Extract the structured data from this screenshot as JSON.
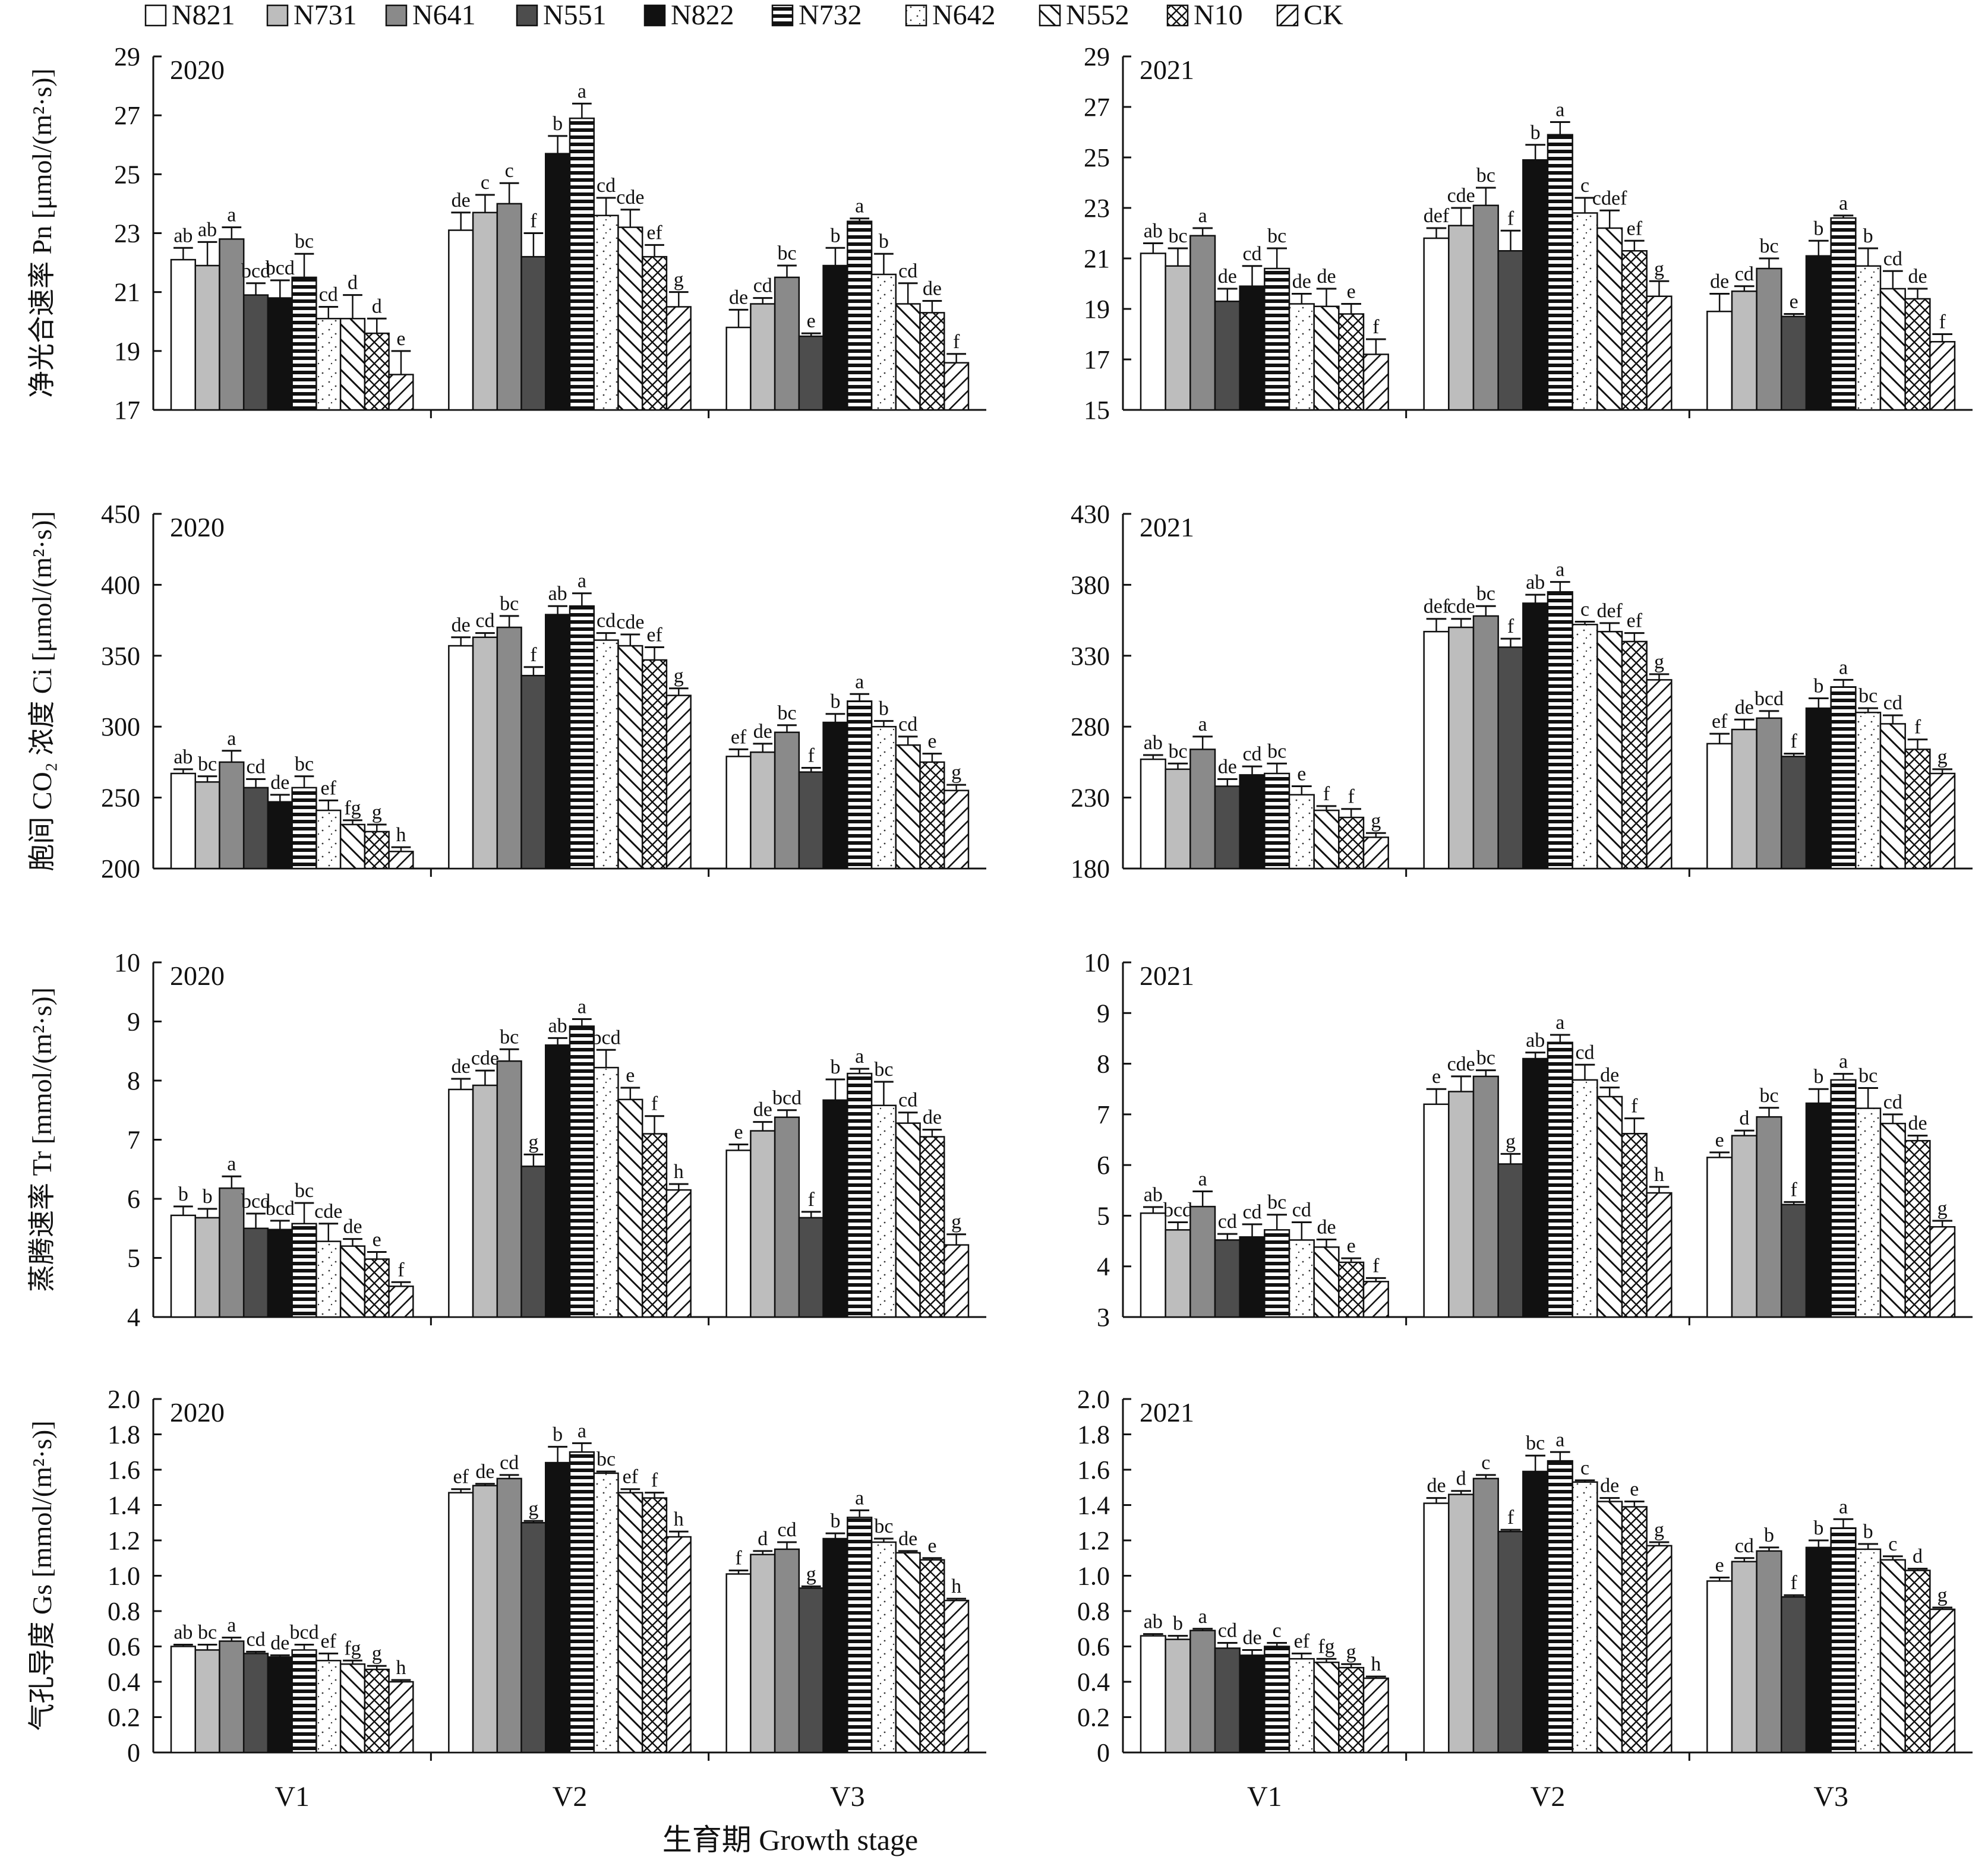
{
  "chart_data": {
    "type": "bar",
    "series_names": [
      "N821",
      "N731",
      "N641",
      "N551",
      "N822",
      "N732",
      "N642",
      "N552",
      "N10",
      "CK"
    ],
    "categories": [
      "V1",
      "V2",
      "V3"
    ],
    "xlabel": "生育期 Growth stage",
    "legend_position": "top",
    "grid": false,
    "panels": [
      {
        "year": "2020",
        "ylabel": "净光合速率 Pn [μmol/(m²·s)]",
        "ylim": [
          17,
          29
        ],
        "yticks": [
          "17",
          "19",
          "21",
          "23",
          "25",
          "27",
          "29"
        ],
        "values": [
          [
            22.1,
            21.9,
            22.8,
            20.9,
            20.8,
            21.5,
            20.1,
            20.1,
            19.6,
            18.2
          ],
          [
            23.1,
            23.7,
            24.0,
            22.2,
            25.7,
            26.9,
            23.6,
            23.2,
            22.2,
            20.5
          ],
          [
            19.8,
            20.6,
            21.5,
            19.5,
            21.9,
            23.4,
            21.6,
            20.6,
            20.3,
            18.6
          ]
        ],
        "errors": [
          [
            0.4,
            0.8,
            0.4,
            0.4,
            0.6,
            0.8,
            0.4,
            0.8,
            0.5,
            0.8
          ],
          [
            0.6,
            0.6,
            0.7,
            0.8,
            0.6,
            0.5,
            0.6,
            0.6,
            0.4,
            0.5
          ],
          [
            0.6,
            0.2,
            0.4,
            0.1,
            0.6,
            0.1,
            0.7,
            0.7,
            0.4,
            0.3
          ]
        ],
        "letters": [
          [
            "ab",
            "ab",
            "a",
            "bcd",
            "bcd",
            "bc",
            "cd",
            "d",
            "d",
            "e"
          ],
          [
            "de",
            "c",
            "c",
            "f",
            "b",
            "a",
            "cd",
            "cde",
            "ef",
            "g"
          ],
          [
            "de",
            "cd",
            "bc",
            "e",
            "b",
            "a",
            "b",
            "cd",
            "de",
            "f"
          ]
        ]
      },
      {
        "year": "2021",
        "ylabel": "",
        "ylim": [
          15,
          29
        ],
        "yticks": [
          "15",
          "17",
          "19",
          "21",
          "23",
          "25",
          "27",
          "29"
        ],
        "values": [
          [
            21.2,
            20.7,
            21.9,
            19.3,
            19.9,
            20.6,
            19.2,
            19.1,
            18.8,
            17.2
          ],
          [
            21.8,
            22.3,
            23.1,
            21.3,
            24.9,
            25.9,
            22.8,
            22.2,
            21.3,
            19.5
          ],
          [
            18.9,
            19.7,
            20.6,
            18.7,
            21.1,
            22.6,
            20.7,
            19.8,
            19.4,
            17.7
          ]
        ],
        "errors": [
          [
            0.4,
            0.7,
            0.3,
            0.5,
            0.8,
            0.8,
            0.4,
            0.7,
            0.4,
            0.6
          ],
          [
            0.4,
            0.7,
            0.7,
            0.8,
            0.6,
            0.5,
            0.6,
            0.7,
            0.4,
            0.6
          ],
          [
            0.7,
            0.2,
            0.4,
            0.1,
            0.6,
            0.1,
            0.7,
            0.7,
            0.4,
            0.3
          ]
        ],
        "letters": [
          [
            "ab",
            "bc",
            "a",
            "de",
            "cd",
            "bc",
            "de",
            "de",
            "e",
            "f"
          ],
          [
            "def",
            "cde",
            "bc",
            "f",
            "b",
            "a",
            "c",
            "cdef",
            "ef",
            "g"
          ],
          [
            "de",
            "cd",
            "bc",
            "e",
            "b",
            "a",
            "b",
            "cd",
            "de",
            "f"
          ]
        ]
      },
      {
        "year": "2020",
        "ylabel": "胞间 CO₂ 浓度 Ci [μmol/(m²·s)]",
        "ylim": [
          200,
          450
        ],
        "yticks": [
          "200",
          "250",
          "300",
          "350",
          "400",
          "450"
        ],
        "values": [
          [
            267,
            261,
            275,
            257,
            247,
            257,
            241,
            231,
            226,
            212
          ],
          [
            357,
            363,
            370,
            336,
            379,
            385,
            361,
            357,
            347,
            322
          ],
          [
            279,
            282,
            296,
            268,
            303,
            318,
            300,
            287,
            275,
            255
          ]
        ],
        "errors": [
          [
            3,
            4,
            8,
            6,
            5,
            8,
            7,
            3,
            5,
            3
          ],
          [
            6,
            3,
            8,
            6,
            6,
            9,
            5,
            8,
            9,
            5
          ],
          [
            5,
            6,
            5,
            3,
            6,
            5,
            4,
            6,
            6,
            4
          ]
        ],
        "letters": [
          [
            "ab",
            "bc",
            "a",
            "cd",
            "de",
            "bc",
            "ef",
            "fg",
            "g",
            "h"
          ],
          [
            "de",
            "cd",
            "bc",
            "f",
            "ab",
            "a",
            "cd",
            "cde",
            "ef",
            "g"
          ],
          [
            "ef",
            "de",
            "bc",
            "f",
            "b",
            "a",
            "b",
            "cd",
            "e",
            "g"
          ]
        ]
      },
      {
        "year": "2021",
        "ylabel": "",
        "ylim": [
          180,
          430
        ],
        "yticks": [
          "180",
          "230",
          "280",
          "330",
          "380",
          "430"
        ],
        "values": [
          [
            257,
            250,
            264,
            238,
            246,
            247,
            232,
            221,
            216,
            202
          ],
          [
            347,
            350,
            358,
            336,
            367,
            375,
            352,
            347,
            340,
            313
          ],
          [
            268,
            278,
            286,
            259,
            293,
            308,
            290,
            282,
            264,
            247
          ]
        ],
        "errors": [
          [
            3,
            4,
            9,
            5,
            6,
            7,
            6,
            3,
            6,
            3
          ],
          [
            9,
            6,
            7,
            6,
            6,
            7,
            2,
            6,
            6,
            4
          ],
          [
            7,
            7,
            5,
            2,
            7,
            5,
            3,
            6,
            7,
            3
          ]
        ],
        "letters": [
          [
            "ab",
            "bc",
            "a",
            "de",
            "cd",
            "bc",
            "e",
            "f",
            "f",
            "g"
          ],
          [
            "def",
            "cde",
            "bc",
            "f",
            "ab",
            "a",
            "c",
            "def",
            "ef",
            "g"
          ],
          [
            "ef",
            "de",
            "bcd",
            "f",
            "b",
            "a",
            "bc",
            "cd",
            "f",
            "g"
          ]
        ]
      },
      {
        "year": "2020",
        "ylabel": "蒸腾速率 Tr [mmol/(m²·s)]",
        "ylim": [
          4,
          10
        ],
        "yticks": [
          "4",
          "5",
          "6",
          "7",
          "8",
          "9",
          "10"
        ],
        "values": [
          [
            5.72,
            5.68,
            6.18,
            5.5,
            5.48,
            5.58,
            5.28,
            5.2,
            4.98,
            4.52
          ],
          [
            7.85,
            7.92,
            8.33,
            6.55,
            8.6,
            8.92,
            8.22,
            7.68,
            7.1,
            6.15
          ],
          [
            6.82,
            7.15,
            7.38,
            5.68,
            7.67,
            8.12,
            7.58,
            7.28,
            7.05,
            5.22
          ]
        ],
        "errors": [
          [
            0.15,
            0.15,
            0.2,
            0.25,
            0.15,
            0.35,
            0.3,
            0.12,
            0.12,
            0.07
          ],
          [
            0.18,
            0.25,
            0.2,
            0.2,
            0.12,
            0.12,
            0.3,
            0.2,
            0.3,
            0.1
          ],
          [
            0.1,
            0.15,
            0.12,
            0.1,
            0.35,
            0.08,
            0.4,
            0.18,
            0.12,
            0.18
          ]
        ],
        "letters": [
          [
            "b",
            "b",
            "a",
            "bcd",
            "bcd",
            "bc",
            "cde",
            "de",
            "e",
            "f"
          ],
          [
            "de",
            "cde",
            "bc",
            "g",
            "ab",
            "a",
            "bcd",
            "e",
            "f",
            "h"
          ],
          [
            "e",
            "de",
            "bcd",
            "f",
            "b",
            "a",
            "bc",
            "cd",
            "de",
            "g"
          ]
        ]
      },
      {
        "year": "2021",
        "ylabel": "",
        "ylim": [
          3,
          10
        ],
        "yticks": [
          "3",
          "4",
          "5",
          "6",
          "7",
          "8",
          "9",
          "10"
        ],
        "values": [
          [
            5.05,
            4.72,
            5.18,
            4.52,
            4.58,
            4.72,
            4.52,
            4.38,
            4.08,
            3.7
          ],
          [
            7.2,
            7.45,
            7.75,
            6.02,
            8.1,
            8.42,
            7.68,
            7.35,
            6.62,
            5.45
          ],
          [
            6.15,
            6.58,
            6.95,
            5.22,
            7.22,
            7.68,
            7.12,
            6.82,
            6.48,
            4.78
          ]
        ],
        "errors": [
          [
            0.12,
            0.15,
            0.3,
            0.12,
            0.25,
            0.3,
            0.35,
            0.15,
            0.08,
            0.07
          ],
          [
            0.3,
            0.3,
            0.12,
            0.2,
            0.12,
            0.15,
            0.3,
            0.18,
            0.3,
            0.12
          ],
          [
            0.1,
            0.1,
            0.18,
            0.05,
            0.28,
            0.12,
            0.4,
            0.18,
            0.1,
            0.12
          ]
        ],
        "letters": [
          [
            "ab",
            "bcd",
            "a",
            "cd",
            "cd",
            "bc",
            "cd",
            "de",
            "e",
            "f"
          ],
          [
            "e",
            "cde",
            "bc",
            "g",
            "ab",
            "a",
            "cd",
            "de",
            "f",
            "h"
          ],
          [
            "e",
            "d",
            "bc",
            "f",
            "b",
            "a",
            "bc",
            "cd",
            "de",
            "g"
          ]
        ]
      },
      {
        "year": "2020",
        "ylabel": "气孔导度 Gs [mmol/(m²·s)]",
        "ylim": [
          0,
          2.0
        ],
        "yticks": [
          "0",
          "0.2",
          "0.4",
          "0.6",
          "0.8",
          "1.0",
          "1.2",
          "1.4",
          "1.6",
          "1.8",
          "2.0"
        ],
        "values": [
          [
            0.6,
            0.58,
            0.63,
            0.56,
            0.54,
            0.58,
            0.52,
            0.5,
            0.47,
            0.4
          ],
          [
            1.47,
            1.51,
            1.55,
            1.3,
            1.64,
            1.7,
            1.58,
            1.47,
            1.44,
            1.22
          ],
          [
            1.01,
            1.12,
            1.15,
            0.93,
            1.21,
            1.33,
            1.19,
            1.13,
            1.09,
            0.86
          ]
        ],
        "errors": [
          [
            0.01,
            0.03,
            0.02,
            0.01,
            0.01,
            0.03,
            0.04,
            0.02,
            0.02,
            0.01
          ],
          [
            0.02,
            0.01,
            0.02,
            0.01,
            0.09,
            0.05,
            0.01,
            0.02,
            0.03,
            0.03
          ],
          [
            0.02,
            0.02,
            0.04,
            0.01,
            0.03,
            0.04,
            0.02,
            0.01,
            0.01,
            0.01
          ]
        ],
        "letters": [
          [
            "ab",
            "bc",
            "a",
            "cd",
            "de",
            "bcd",
            "ef",
            "fg",
            "g",
            "h"
          ],
          [
            "ef",
            "de",
            "cd",
            "g",
            "b",
            "a",
            "bc",
            "ef",
            "f",
            "h"
          ],
          [
            "f",
            "d",
            "cd",
            "g",
            "b",
            "a",
            "bc",
            "de",
            "e",
            "h"
          ]
        ]
      },
      {
        "year": "2021",
        "ylabel": "",
        "ylim": [
          0,
          2.0
        ],
        "yticks": [
          "0",
          "0.2",
          "0.4",
          "0.6",
          "0.8",
          "1.0",
          "1.2",
          "1.4",
          "1.6",
          "1.8",
          "2.0"
        ],
        "values": [
          [
            0.66,
            0.64,
            0.69,
            0.59,
            0.55,
            0.6,
            0.53,
            0.51,
            0.48,
            0.42
          ],
          [
            1.41,
            1.46,
            1.55,
            1.25,
            1.59,
            1.65,
            1.53,
            1.42,
            1.39,
            1.17
          ],
          [
            0.97,
            1.08,
            1.14,
            0.88,
            1.16,
            1.27,
            1.15,
            1.09,
            1.03,
            0.81
          ]
        ],
        "errors": [
          [
            0.01,
            0.02,
            0.01,
            0.03,
            0.03,
            0.02,
            0.03,
            0.02,
            0.02,
            0.01
          ],
          [
            0.03,
            0.02,
            0.02,
            0.01,
            0.09,
            0.05,
            0.01,
            0.02,
            0.03,
            0.02
          ],
          [
            0.02,
            0.02,
            0.02,
            0.01,
            0.04,
            0.05,
            0.03,
            0.02,
            0.01,
            0.01
          ]
        ],
        "letters": [
          [
            "ab",
            "b",
            "a",
            "cd",
            "de",
            "c",
            "ef",
            "fg",
            "g",
            "h"
          ],
          [
            "de",
            "d",
            "c",
            "f",
            "bc",
            "a",
            "c",
            "de",
            "e",
            "g"
          ],
          [
            "e",
            "cd",
            "b",
            "f",
            "b",
            "a",
            "b",
            "c",
            "d",
            "g"
          ]
        ]
      }
    ]
  }
}
